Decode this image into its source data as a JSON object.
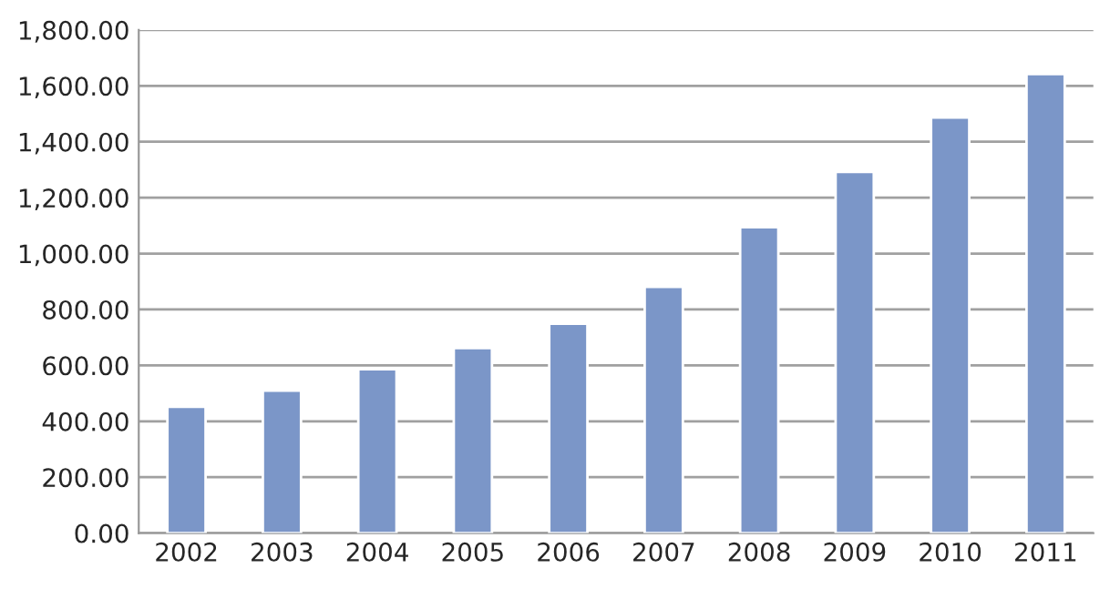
{
  "chart_data": {
    "type": "bar",
    "categories": [
      "2002",
      "2003",
      "2004",
      "2005",
      "2006",
      "2007",
      "2008",
      "2009",
      "2010",
      "2011"
    ],
    "values": [
      452,
      510,
      586,
      662,
      749,
      881,
      1094,
      1292,
      1487,
      1642
    ],
    "color": "#7b96c8",
    "ylim": [
      0,
      1800
    ],
    "yticks": [
      {
        "value": 0,
        "label": "0.00"
      },
      {
        "value": 200,
        "label": "200.00"
      },
      {
        "value": 400,
        "label": "400.00"
      },
      {
        "value": 600,
        "label": "600.00"
      },
      {
        "value": 800,
        "label": "800.00"
      },
      {
        "value": 1000,
        "label": "1,000.00"
      },
      {
        "value": 1200,
        "label": "1,200.00"
      },
      {
        "value": 1400,
        "label": "1,400.00"
      },
      {
        "value": 1600,
        "label": "1,600.00"
      },
      {
        "value": 1800,
        "label": "1,800.00"
      }
    ],
    "grid": "y"
  }
}
